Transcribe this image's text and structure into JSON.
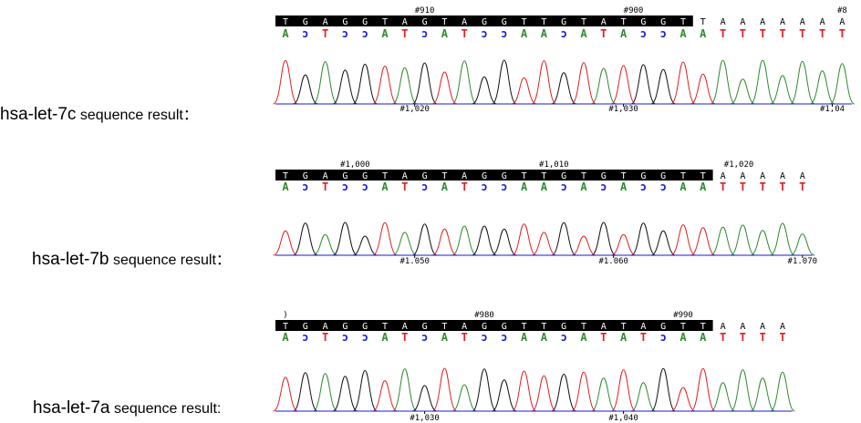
{
  "colors": {
    "A": "#2e8b2e",
    "C": "#1c1cd6",
    "G": "#111111",
    "T": "#e02020",
    "band": "#000000",
    "band_text": "#ffffff"
  },
  "panels": [
    {
      "label_main": "hsa-let-7c",
      "label_rest": " sequence result：",
      "sequence": "TGAGGTAGTAGGTTGTATGGTTAAAAAAA",
      "complement": "ACTCCATCATCCAACATACCAATTTTTTT",
      "band_count": 21,
      "top_labels": [
        {
          "text": "#910",
          "at": 7
        },
        {
          "text": "#900",
          "at": 17.5
        },
        {
          "text": "#8",
          "at": 28
        }
      ],
      "bottom_labels": [
        {
          "text": "#1,020",
          "at": 6.5
        },
        {
          "text": "#1,030",
          "at": 17
        },
        {
          "text": "#1,04",
          "at": 27.5
        }
      ]
    },
    {
      "label_main": "hsa-let-7b",
      "label_rest": " sequence result：",
      "sequence": "TGAGGTAGTAGGTTGTGTGGTTAAAAA",
      "complement": "ACTCCATCATCCAACACACCAATTTTT",
      "band_count": 22,
      "top_labels": [
        {
          "text": "#1,000",
          "at": 3.5
        },
        {
          "text": "#1,010",
          "at": 13.5
        },
        {
          "text": "#1,020",
          "at": 22.8
        }
      ],
      "bottom_labels": [
        {
          "text": "#1.050",
          "at": 6.5
        },
        {
          "text": "#1.060",
          "at": 16.5
        },
        {
          "text": "#1.070",
          "at": 26
        }
      ]
    },
    {
      "label_main": "hsa-let-7a",
      "label_rest": " sequence result:",
      "sequence": "TGAGGTAGTAGGTTGTATAGTTAAAA",
      "complement": "ACTCCATCATCCAACATATCAATTTT",
      "band_count": 22,
      "top_labels": [
        {
          "text": ")",
          "at": 0
        },
        {
          "text": "#980",
          "at": 10
        },
        {
          "text": "#990",
          "at": 20
        }
      ],
      "bottom_labels": [
        {
          "text": "#1,030",
          "at": 7
        },
        {
          "text": "#1,040",
          "at": 17
        }
      ]
    }
  ]
}
